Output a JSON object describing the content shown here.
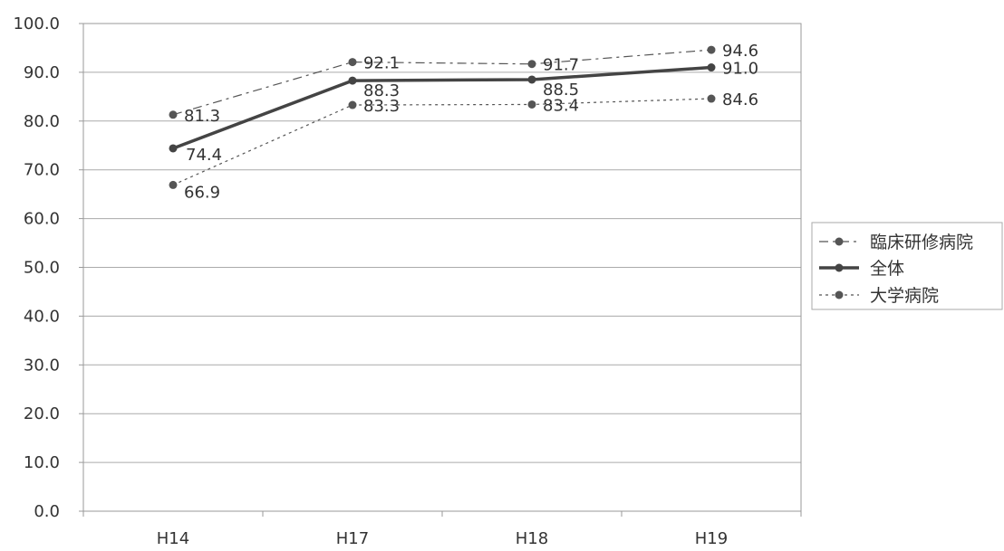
{
  "chart_data": {
    "type": "line",
    "title": "",
    "xlabel": "",
    "ylabel": "",
    "categories": [
      "H14",
      "H17",
      "H18",
      "H19"
    ],
    "ylim": [
      0,
      100
    ],
    "y_ticks": [
      "0.0",
      "10.0",
      "20.0",
      "30.0",
      "40.0",
      "50.0",
      "60.0",
      "70.0",
      "80.0",
      "90.0",
      "100.0"
    ],
    "grid": true,
    "legend_position": "right",
    "series": [
      {
        "name": "臨床研修病院",
        "values": [
          81.3,
          92.1,
          91.7,
          94.6
        ],
        "labels": [
          "81.3",
          "92.1",
          "91.7",
          "94.6"
        ],
        "style": "dash-dot",
        "color": "#555555"
      },
      {
        "name": "全体",
        "values": [
          74.4,
          88.3,
          88.5,
          91.0
        ],
        "labels": [
          "74.4",
          "88.3",
          "88.5",
          "91.0"
        ],
        "style": "solid",
        "color": "#444444"
      },
      {
        "name": "大学病院",
        "values": [
          66.9,
          83.3,
          83.4,
          84.6
        ],
        "labels": [
          "66.9",
          "83.3",
          "83.4",
          "84.6"
        ],
        "style": "dotted",
        "color": "#555555"
      }
    ]
  }
}
